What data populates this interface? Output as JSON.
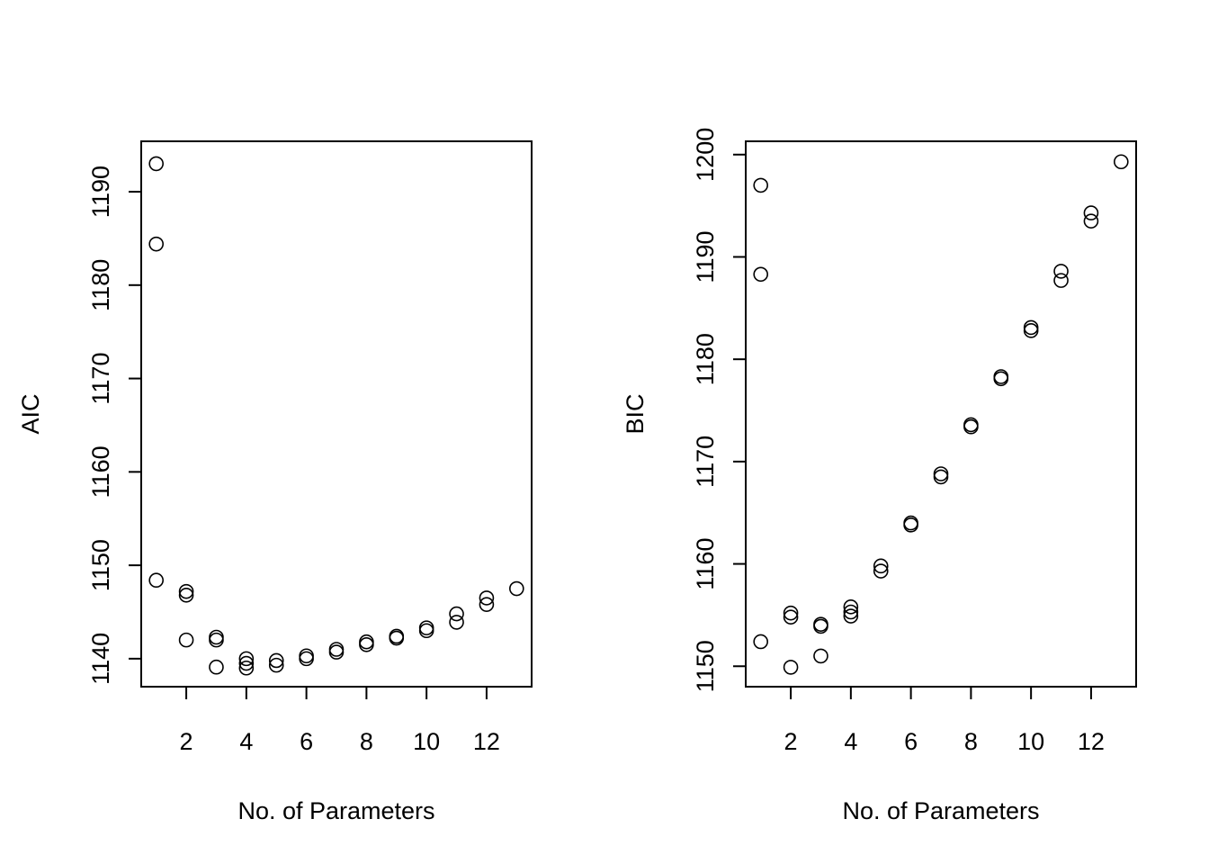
{
  "chart_data": [
    {
      "type": "scatter",
      "xlabel": "No. of Parameters",
      "ylabel": "AIC",
      "xlim": [
        0.5,
        13.5
      ],
      "ylim": [
        1137,
        1195.4
      ],
      "xticks": [
        2,
        4,
        6,
        8,
        10,
        12
      ],
      "yticks": [
        1140,
        1150,
        1160,
        1170,
        1180,
        1190
      ],
      "grid": false,
      "legend": "none",
      "points": [
        {
          "x": 1,
          "y": 1193.0
        },
        {
          "x": 1,
          "y": 1184.4
        },
        {
          "x": 1,
          "y": 1148.4
        },
        {
          "x": 2,
          "y": 1147.2
        },
        {
          "x": 2,
          "y": 1146.8
        },
        {
          "x": 2,
          "y": 1142.0
        },
        {
          "x": 3,
          "y": 1142.3
        },
        {
          "x": 3,
          "y": 1142.0
        },
        {
          "x": 3,
          "y": 1139.1
        },
        {
          "x": 4,
          "y": 1140.0
        },
        {
          "x": 4,
          "y": 1139.5
        },
        {
          "x": 4,
          "y": 1139.0
        },
        {
          "x": 5,
          "y": 1139.8
        },
        {
          "x": 5,
          "y": 1139.3
        },
        {
          "x": 6,
          "y": 1140.3
        },
        {
          "x": 6,
          "y": 1140.0
        },
        {
          "x": 7,
          "y": 1141.0
        },
        {
          "x": 7,
          "y": 1140.7
        },
        {
          "x": 8,
          "y": 1141.8
        },
        {
          "x": 8,
          "y": 1141.5
        },
        {
          "x": 9,
          "y": 1142.4
        },
        {
          "x": 9,
          "y": 1142.2
        },
        {
          "x": 10,
          "y": 1143.3
        },
        {
          "x": 10,
          "y": 1143.0
        },
        {
          "x": 11,
          "y": 1144.8
        },
        {
          "x": 11,
          "y": 1143.9
        },
        {
          "x": 12,
          "y": 1146.5
        },
        {
          "x": 12,
          "y": 1145.8
        },
        {
          "x": 13,
          "y": 1147.5
        }
      ]
    },
    {
      "type": "scatter",
      "xlabel": "No. of Parameters",
      "ylabel": "BIC",
      "xlim": [
        0.5,
        13.5
      ],
      "ylim": [
        1148.0,
        1201.3
      ],
      "xticks": [
        2,
        4,
        6,
        8,
        10,
        12
      ],
      "yticks": [
        1150,
        1160,
        1170,
        1180,
        1190,
        1200
      ],
      "grid": false,
      "legend": "none",
      "points": [
        {
          "x": 1,
          "y": 1197.0
        },
        {
          "x": 1,
          "y": 1188.3
        },
        {
          "x": 1,
          "y": 1152.4
        },
        {
          "x": 2,
          "y": 1155.2
        },
        {
          "x": 2,
          "y": 1154.8
        },
        {
          "x": 2,
          "y": 1149.9
        },
        {
          "x": 3,
          "y": 1154.1
        },
        {
          "x": 3,
          "y": 1153.9
        },
        {
          "x": 3,
          "y": 1151.0
        },
        {
          "x": 4,
          "y": 1155.8
        },
        {
          "x": 4,
          "y": 1155.3
        },
        {
          "x": 4,
          "y": 1154.9
        },
        {
          "x": 5,
          "y": 1159.8
        },
        {
          "x": 5,
          "y": 1159.3
        },
        {
          "x": 6,
          "y": 1164.0
        },
        {
          "x": 6,
          "y": 1163.8
        },
        {
          "x": 7,
          "y": 1168.8
        },
        {
          "x": 7,
          "y": 1168.5
        },
        {
          "x": 8,
          "y": 1173.6
        },
        {
          "x": 8,
          "y": 1173.4
        },
        {
          "x": 9,
          "y": 1178.3
        },
        {
          "x": 9,
          "y": 1178.1
        },
        {
          "x": 10,
          "y": 1183.1
        },
        {
          "x": 10,
          "y": 1182.8
        },
        {
          "x": 11,
          "y": 1188.6
        },
        {
          "x": 11,
          "y": 1187.7
        },
        {
          "x": 12,
          "y": 1194.3
        },
        {
          "x": 12,
          "y": 1193.5
        },
        {
          "x": 13,
          "y": 1199.3
        }
      ]
    }
  ]
}
